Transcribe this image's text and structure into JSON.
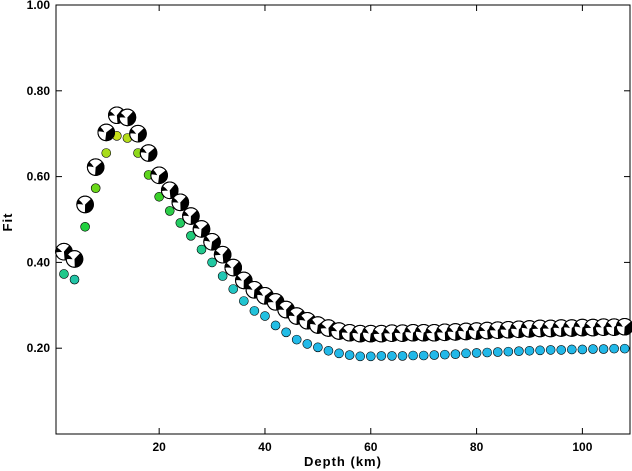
{
  "chart_data": {
    "type": "scatter",
    "title": "",
    "xlabel": "Depth (km)",
    "ylabel": "Fit",
    "xlim": [
      0.5,
      109
    ],
    "ylim": [
      0.0,
      1.0
    ],
    "x_ticks": [
      20,
      40,
      60,
      80,
      100
    ],
    "y_ticks": [
      0.2,
      0.4,
      0.6,
      0.8,
      1.0
    ],
    "y_tick_labels": [
      "0.20",
      "0.40",
      "0.60",
      "0.80",
      "1.00"
    ],
    "grid": false,
    "series": [
      {
        "marker": "focal-mechanism",
        "points": [
          [
            2,
            0.425
          ],
          [
            4,
            0.408
          ],
          [
            6,
            0.535
          ],
          [
            8,
            0.622
          ],
          [
            10,
            0.703
          ],
          [
            12,
            0.743
          ],
          [
            14,
            0.738
          ],
          [
            16,
            0.7
          ],
          [
            18,
            0.655
          ],
          [
            20,
            0.603
          ],
          [
            22,
            0.568
          ],
          [
            24,
            0.54
          ],
          [
            26,
            0.508
          ],
          [
            28,
            0.478
          ],
          [
            30,
            0.448
          ],
          [
            32,
            0.418
          ],
          [
            34,
            0.388
          ],
          [
            36,
            0.358
          ],
          [
            38,
            0.336
          ],
          [
            40,
            0.322
          ],
          [
            42,
            0.308
          ],
          [
            44,
            0.29
          ],
          [
            46,
            0.275
          ],
          [
            48,
            0.264
          ],
          [
            50,
            0.254
          ],
          [
            52,
            0.247
          ],
          [
            54,
            0.24
          ],
          [
            56,
            0.236
          ],
          [
            58,
            0.234
          ],
          [
            60,
            0.234
          ],
          [
            62,
            0.234
          ],
          [
            64,
            0.235
          ],
          [
            66,
            0.235
          ],
          [
            68,
            0.236
          ],
          [
            70,
            0.236
          ],
          [
            72,
            0.236
          ],
          [
            74,
            0.237
          ],
          [
            76,
            0.238
          ],
          [
            78,
            0.239
          ],
          [
            80,
            0.24
          ],
          [
            82,
            0.241
          ],
          [
            84,
            0.242
          ],
          [
            86,
            0.243
          ],
          [
            88,
            0.244
          ],
          [
            90,
            0.245
          ],
          [
            92,
            0.246
          ],
          [
            94,
            0.246
          ],
          [
            96,
            0.247
          ],
          [
            98,
            0.247
          ],
          [
            100,
            0.248
          ],
          [
            102,
            0.248
          ],
          [
            104,
            0.249
          ],
          [
            106,
            0.249
          ],
          [
            108,
            0.25
          ]
        ]
      },
      {
        "marker": "circle",
        "points": [
          [
            2,
            0.373
          ],
          [
            4,
            0.36
          ],
          [
            6,
            0.483
          ],
          [
            8,
            0.573
          ],
          [
            10,
            0.655
          ],
          [
            12,
            0.695
          ],
          [
            14,
            0.69
          ],
          [
            16,
            0.655
          ],
          [
            18,
            0.604
          ],
          [
            20,
            0.553
          ],
          [
            22,
            0.52
          ],
          [
            24,
            0.492
          ],
          [
            26,
            0.462
          ],
          [
            28,
            0.43
          ],
          [
            30,
            0.4
          ],
          [
            32,
            0.368
          ],
          [
            34,
            0.338
          ],
          [
            36,
            0.31
          ],
          [
            38,
            0.287
          ],
          [
            40,
            0.275
          ],
          [
            42,
            0.253
          ],
          [
            44,
            0.237
          ],
          [
            46,
            0.22
          ],
          [
            48,
            0.21
          ],
          [
            50,
            0.202
          ],
          [
            52,
            0.194
          ],
          [
            54,
            0.188
          ],
          [
            56,
            0.184
          ],
          [
            58,
            0.181
          ],
          [
            60,
            0.181
          ],
          [
            62,
            0.182
          ],
          [
            64,
            0.182
          ],
          [
            66,
            0.182
          ],
          [
            68,
            0.183
          ],
          [
            70,
            0.183
          ],
          [
            72,
            0.184
          ],
          [
            74,
            0.185
          ],
          [
            76,
            0.186
          ],
          [
            78,
            0.188
          ],
          [
            80,
            0.189
          ],
          [
            82,
            0.19
          ],
          [
            84,
            0.191
          ],
          [
            86,
            0.192
          ],
          [
            88,
            0.193
          ],
          [
            90,
            0.194
          ],
          [
            92,
            0.195
          ],
          [
            94,
            0.196
          ],
          [
            96,
            0.196
          ],
          [
            98,
            0.197
          ],
          [
            100,
            0.197
          ],
          [
            102,
            0.198
          ],
          [
            104,
            0.198
          ],
          [
            106,
            0.199
          ],
          [
            108,
            0.199
          ]
        ],
        "colors": [
          "#22c88a",
          "#22c4a6",
          "#22d040",
          "#6ad81a",
          "#a8dc1a",
          "#c8e01a",
          "#b4dc1a",
          "#8ed81a",
          "#5ed41e",
          "#3ad02a",
          "#2ccd48",
          "#24cc62",
          "#22ca7a",
          "#22c98e",
          "#22c8a2",
          "#22c7b4",
          "#22c6c4",
          "#22c4d0",
          "#22c2da",
          "#22c0e0",
          "#22bde4",
          "#22bce6",
          "#22bae8",
          "#22b9e8",
          "#22b8e8",
          "#22b8e8",
          "#22b8e8",
          "#22b8e8",
          "#22b8e8",
          "#22b8e8",
          "#22b8e8",
          "#22b8e8",
          "#22b8e8",
          "#22b8e8",
          "#22b8e8",
          "#22b8e8",
          "#22b8e8",
          "#22b8e8",
          "#22b8e8",
          "#22b8e8",
          "#22b8e8",
          "#22b8e8",
          "#22b8e8",
          "#22b8e8",
          "#22b8e8",
          "#22b8e8",
          "#22b8e8",
          "#22b8e8",
          "#22b8e8",
          "#22b8e8",
          "#22b8e8",
          "#22b8e8",
          "#22b8e8",
          "#22b8e8"
        ]
      }
    ]
  }
}
